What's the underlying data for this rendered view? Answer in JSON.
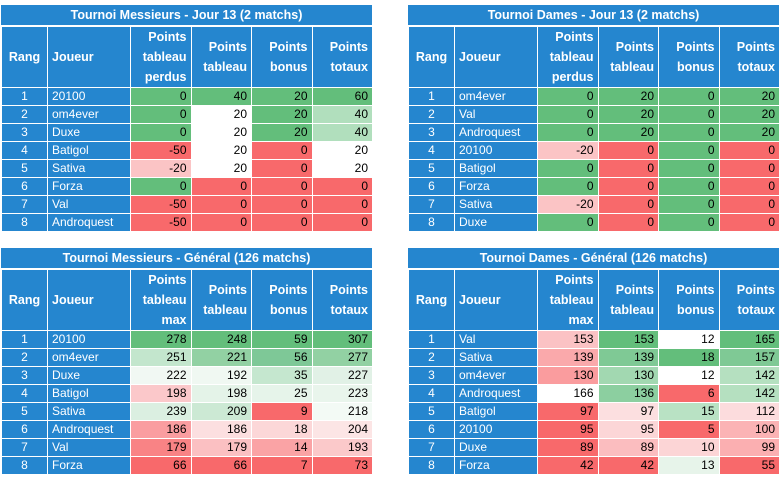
{
  "headers": {
    "rang": "Rang",
    "joueur": "Joueur",
    "perdus": [
      "Points",
      "tableau",
      "perdus"
    ],
    "max": [
      "Points",
      "tableau",
      "max"
    ],
    "tableau": [
      "Points",
      "tableau"
    ],
    "bonus": [
      "Points",
      "bonus"
    ],
    "totaux": [
      "Points",
      "totaux"
    ]
  },
  "colors": {
    "panel_bg": "#2586cf",
    "green_strong": "#62bc7b",
    "green_light": "#b6e0c2",
    "red_strong": "#f8696b",
    "red_light": "#fbc2c4",
    "white": "#ffffff"
  },
  "tables": [
    {
      "title": "Tournoi Messieurs - Jour 13 (2 matchs)",
      "first_header": "perdus",
      "rows": [
        {
          "rang": "1",
          "joueur": "20100",
          "v": [
            "0",
            "40",
            "20",
            "60"
          ],
          "c": [
            "#63be7b",
            "#63be7b",
            "#63be7b",
            "#63be7b"
          ]
        },
        {
          "rang": "2",
          "joueur": "om4ever",
          "v": [
            "0",
            "20",
            "20",
            "40"
          ],
          "c": [
            "#63be7b",
            "#ffffff",
            "#63be7b",
            "#b1dfbd"
          ]
        },
        {
          "rang": "3",
          "joueur": "Duxe",
          "v": [
            "0",
            "20",
            "20",
            "40"
          ],
          "c": [
            "#63be7b",
            "#ffffff",
            "#63be7b",
            "#b1dfbd"
          ]
        },
        {
          "rang": "4",
          "joueur": "Batigol",
          "v": [
            "-50",
            "20",
            "0",
            "20"
          ],
          "c": [
            "#f8696b",
            "#ffffff",
            "#f8696b",
            "#ffffff"
          ]
        },
        {
          "rang": "5",
          "joueur": "Sativa",
          "v": [
            "-20",
            "20",
            "0",
            "20"
          ],
          "c": [
            "#fbc4c5",
            "#ffffff",
            "#f8696b",
            "#ffffff"
          ]
        },
        {
          "rang": "6",
          "joueur": "Forza",
          "v": [
            "0",
            "0",
            "0",
            "0"
          ],
          "c": [
            "#63be7b",
            "#f8696b",
            "#f8696b",
            "#f8696b"
          ]
        },
        {
          "rang": "7",
          "joueur": "Val",
          "v": [
            "-50",
            "0",
            "0",
            "0"
          ],
          "c": [
            "#f8696b",
            "#f8696b",
            "#f8696b",
            "#f8696b"
          ]
        },
        {
          "rang": "8",
          "joueur": "Androquest",
          "v": [
            "-50",
            "0",
            "0",
            "0"
          ],
          "c": [
            "#f8696b",
            "#f8696b",
            "#f8696b",
            "#f8696b"
          ]
        }
      ]
    },
    {
      "title": "Tournoi Dames - Jour 13 (2 matchs)",
      "first_header": "perdus",
      "rows": [
        {
          "rang": "1",
          "joueur": "om4ever",
          "v": [
            "0",
            "20",
            "0",
            "20"
          ],
          "c": [
            "#63be7b",
            "#63be7b",
            "#63be7b",
            "#63be7b"
          ]
        },
        {
          "rang": "2",
          "joueur": "Val",
          "v": [
            "0",
            "20",
            "0",
            "20"
          ],
          "c": [
            "#63be7b",
            "#63be7b",
            "#63be7b",
            "#63be7b"
          ]
        },
        {
          "rang": "3",
          "joueur": "Androquest",
          "v": [
            "0",
            "20",
            "0",
            "20"
          ],
          "c": [
            "#63be7b",
            "#63be7b",
            "#63be7b",
            "#63be7b"
          ]
        },
        {
          "rang": "4",
          "joueur": "20100",
          "v": [
            "-20",
            "0",
            "0",
            "0"
          ],
          "c": [
            "#fbc4c5",
            "#f8696b",
            "#63be7b",
            "#f8696b"
          ]
        },
        {
          "rang": "5",
          "joueur": "Batigol",
          "v": [
            "0",
            "0",
            "0",
            "0"
          ],
          "c": [
            "#63be7b",
            "#f8696b",
            "#63be7b",
            "#f8696b"
          ]
        },
        {
          "rang": "6",
          "joueur": "Forza",
          "v": [
            "0",
            "0",
            "0",
            "0"
          ],
          "c": [
            "#63be7b",
            "#f8696b",
            "#63be7b",
            "#f8696b"
          ]
        },
        {
          "rang": "7",
          "joueur": "Sativa",
          "v": [
            "-20",
            "0",
            "0",
            "0"
          ],
          "c": [
            "#fbc4c5",
            "#f8696b",
            "#63be7b",
            "#f8696b"
          ]
        },
        {
          "rang": "8",
          "joueur": "Duxe",
          "v": [
            "0",
            "0",
            "0",
            "0"
          ],
          "c": [
            "#63be7b",
            "#f8696b",
            "#63be7b",
            "#f8696b"
          ]
        }
      ]
    },
    {
      "title": "Tournoi Messieurs - Général (126 matchs)",
      "first_header": "max",
      "rows": [
        {
          "rang": "1",
          "joueur": "20100",
          "v": [
            "278",
            "248",
            "59",
            "307"
          ],
          "c": [
            "#63be7b",
            "#63be7b",
            "#63be7b",
            "#63be7b"
          ]
        },
        {
          "rang": "2",
          "joueur": "om4ever",
          "v": [
            "251",
            "221",
            "56",
            "277"
          ],
          "c": [
            "#c3e6cd",
            "#92d1a3",
            "#7ec897",
            "#92d1a3"
          ]
        },
        {
          "rang": "3",
          "joueur": "Duxe",
          "v": [
            "222",
            "192",
            "35",
            "227"
          ],
          "c": [
            "#f1f8f3",
            "#f0f8f2",
            "#c5e7cf",
            "#e1f1e6"
          ]
        },
        {
          "rang": "4",
          "joueur": "Batigol",
          "v": [
            "198",
            "198",
            "25",
            "223"
          ],
          "c": [
            "#fbc8ca",
            "#e4f3e8",
            "#e6f4ea",
            "#e9f5ec"
          ]
        },
        {
          "rang": "5",
          "joueur": "Sativa",
          "v": [
            "239",
            "209",
            "9",
            "218"
          ],
          "c": [
            "#dbefe1",
            "#cce9d4",
            "#f8696b",
            "#f3faf5"
          ]
        },
        {
          "rang": "6",
          "joueur": "Androquest",
          "v": [
            "186",
            "186",
            "18",
            "204"
          ],
          "c": [
            "#fa9da0",
            "#fcdfe0",
            "#fcd7d8",
            "#fce5e5"
          ]
        },
        {
          "rang": "7",
          "joueur": "Val",
          "v": [
            "179",
            "179",
            "14",
            "193"
          ],
          "c": [
            "#f98385",
            "#fbc0c2",
            "#faa3a5",
            "#fbc9ca"
          ]
        },
        {
          "rang": "8",
          "joueur": "Forza",
          "v": [
            "66",
            "66",
            "7",
            "73"
          ],
          "c": [
            "#f8696b",
            "#f8696b",
            "#f8696b",
            "#f8696b"
          ]
        }
      ]
    },
    {
      "title": "Tournoi Dames - Général (126 matchs)",
      "first_header": "max",
      "rows": [
        {
          "rang": "1",
          "joueur": "Val",
          "v": [
            "153",
            "153",
            "12",
            "165"
          ],
          "c": [
            "#fbc2c4",
            "#63be7b",
            "#ffffff",
            "#63be7b"
          ]
        },
        {
          "rang": "2",
          "joueur": "Sativa",
          "v": [
            "139",
            "139",
            "18",
            "157"
          ],
          "c": [
            "#faa9ab",
            "#7fc995",
            "#63be7b",
            "#7fc995"
          ]
        },
        {
          "rang": "3",
          "joueur": "om4ever",
          "v": [
            "130",
            "130",
            "12",
            "142"
          ],
          "c": [
            "#fa9c9e",
            "#a2d8b1",
            "#ffffff",
            "#b5e0c0"
          ]
        },
        {
          "rang": "4",
          "joueur": "Androquest",
          "v": [
            "166",
            "136",
            "6",
            "142"
          ],
          "c": [
            "#ffffff",
            "#8ccfa0",
            "#f8696b",
            "#b5e0c0"
          ]
        },
        {
          "rang": "5",
          "joueur": "Batigol",
          "v": [
            "97",
            "97",
            "15",
            "112"
          ],
          "c": [
            "#f8696b",
            "#fcdfe0",
            "#b9e2c4",
            "#fcdcdd"
          ]
        },
        {
          "rang": "6",
          "joueur": "20100",
          "v": [
            "95",
            "95",
            "5",
            "100"
          ],
          "c": [
            "#f8686a",
            "#fcd6d7",
            "#f8696b",
            "#fbb3b5"
          ]
        },
        {
          "rang": "7",
          "joueur": "Duxe",
          "v": [
            "89",
            "89",
            "10",
            "99"
          ],
          "c": [
            "#f8696b",
            "#fbbdbf",
            "#fcd5d6",
            "#fbafb1"
          ]
        },
        {
          "rang": "8",
          "joueur": "Forza",
          "v": [
            "42",
            "42",
            "13",
            "55"
          ],
          "c": [
            "#f8696b",
            "#f8696b",
            "#e7f4ea",
            "#f8696b"
          ]
        }
      ]
    }
  ]
}
